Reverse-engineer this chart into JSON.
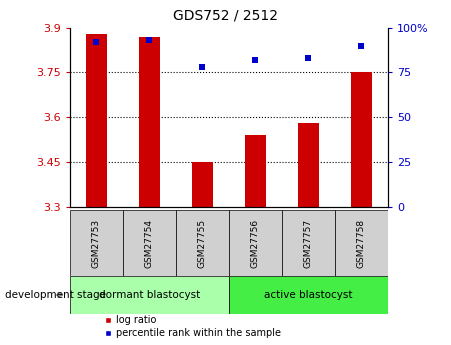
{
  "title": "GDS752 / 2512",
  "samples": [
    "GSM27753",
    "GSM27754",
    "GSM27755",
    "GSM27756",
    "GSM27757",
    "GSM27758"
  ],
  "log_ratios": [
    3.88,
    3.87,
    3.45,
    3.54,
    3.58,
    3.75
  ],
  "percentile_ranks": [
    92,
    93,
    78,
    82,
    83,
    90
  ],
  "bar_color": "#cc0000",
  "dot_color": "#0000cc",
  "ylim_left": [
    3.3,
    3.9
  ],
  "ylim_right": [
    0,
    100
  ],
  "yticks_left": [
    3.3,
    3.45,
    3.6,
    3.75,
    3.9
  ],
  "yticks_right": [
    0,
    25,
    50,
    75,
    100
  ],
  "ytick_labels_left": [
    "3.3",
    "3.45",
    "3.6",
    "3.75",
    "3.9"
  ],
  "ytick_labels_right": [
    "0",
    "25",
    "50",
    "75",
    "100%"
  ],
  "hlines": [
    3.45,
    3.6,
    3.75
  ],
  "groups": [
    {
      "label": "dormant blastocyst",
      "indices": [
        0,
        1,
        2
      ],
      "color": "#aaffaa"
    },
    {
      "label": "active blastocyst",
      "indices": [
        3,
        4,
        5
      ],
      "color": "#44ee44"
    }
  ],
  "group_label_prefix": "development stage",
  "legend_items": [
    {
      "label": "log ratio",
      "color": "#cc0000"
    },
    {
      "label": "percentile rank within the sample",
      "color": "#0000cc"
    }
  ],
  "bar_width": 0.4,
  "base_value": 3.3,
  "sample_box_color": "#d0d0d0"
}
